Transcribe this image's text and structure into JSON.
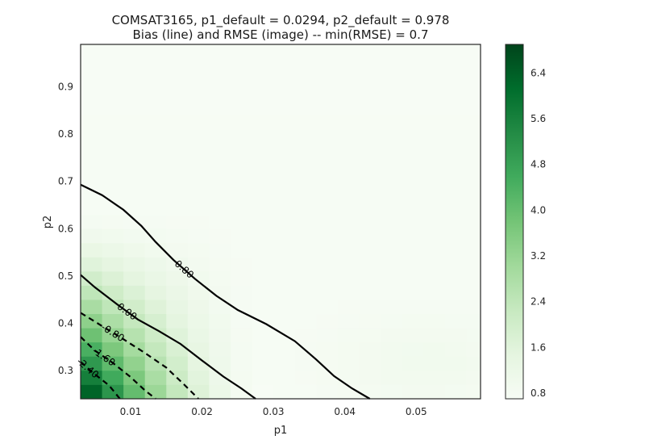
{
  "chart_data": {
    "type": "heatmap",
    "title": "COMSAT3165, p1_default = 0.0294, p2_default = 0.978",
    "subtitle": "Bias (line) and RMSE (image) -- min(RMSE) = 0.7",
    "xlabel": "p1",
    "ylabel": "p2",
    "xlim": [
      0.003,
      0.059
    ],
    "ylim": [
      0.24,
      0.99
    ],
    "x_ticks": [
      0.01,
      0.02,
      0.03,
      0.04,
      0.05
    ],
    "x_tick_labels": [
      "0.01",
      "0.02",
      "0.03",
      "0.04",
      "0.05"
    ],
    "y_ticks": [
      0.3,
      0.4,
      0.5,
      0.6,
      0.7,
      0.8,
      0.9
    ],
    "y_tick_labels": [
      "0.3",
      "0.4",
      "0.5",
      "0.6",
      "0.7",
      "0.8",
      "0.9"
    ],
    "grid": false,
    "colormap": "Greens",
    "colormap_stops": [
      "#f7fcf5",
      "#e5f5e0",
      "#c7e9c0",
      "#a1d99b",
      "#74c476",
      "#41ab5d",
      "#238b45",
      "#006d2c",
      "#00441b"
    ],
    "colorbar": {
      "range": [
        0.7,
        6.9
      ],
      "ticks": [
        0.8,
        1.6,
        2.4,
        3.2,
        4.0,
        4.8,
        5.6,
        6.4
      ],
      "tick_labels": [
        "0.8",
        "1.6",
        "2.4",
        "3.2",
        "4.0",
        "4.8",
        "5.6",
        "6.4"
      ]
    },
    "rmse_image": {
      "description": "RMSE grid over (p1, p2); high values in lower-left corner, decreasing toward upper-right",
      "p1_start": 0.003,
      "p1_step": 0.003,
      "p1_count": 19,
      "p2_start": 0.24,
      "p2_step": 0.03,
      "p2_count": 25,
      "min_rmse": 0.7
    },
    "bias_contours": [
      {
        "level": 0.8,
        "label": "0.80",
        "style": "solid",
        "points": [
          [
            0.003,
            0.693
          ],
          [
            0.006,
            0.671
          ],
          [
            0.009,
            0.64
          ],
          [
            0.0115,
            0.606
          ],
          [
            0.0135,
            0.572
          ],
          [
            0.016,
            0.534
          ],
          [
            0.019,
            0.494
          ],
          [
            0.022,
            0.458
          ],
          [
            0.025,
            0.428
          ],
          [
            0.029,
            0.398
          ],
          [
            0.033,
            0.362
          ],
          [
            0.036,
            0.323
          ],
          [
            0.0385,
            0.288
          ],
          [
            0.041,
            0.262
          ],
          [
            0.0435,
            0.24
          ]
        ]
      },
      {
        "level": 0.0,
        "label": "0.00",
        "style": "solid",
        "points": [
          [
            0.003,
            0.502
          ],
          [
            0.005,
            0.476
          ],
          [
            0.008,
            0.441
          ],
          [
            0.011,
            0.408
          ],
          [
            0.014,
            0.383
          ],
          [
            0.017,
            0.356
          ],
          [
            0.02,
            0.321
          ],
          [
            0.023,
            0.287
          ],
          [
            0.0255,
            0.262
          ],
          [
            0.0275,
            0.24
          ]
        ]
      },
      {
        "level": -0.8,
        "label": "-0.80",
        "style": "dashed",
        "points": [
          [
            0.003,
            0.422
          ],
          [
            0.006,
            0.394
          ],
          [
            0.009,
            0.366
          ],
          [
            0.012,
            0.337
          ],
          [
            0.015,
            0.306
          ],
          [
            0.0175,
            0.27
          ],
          [
            0.0195,
            0.24
          ]
        ]
      },
      {
        "level": -1.6,
        "label": "-1.60",
        "style": "dashed",
        "points": [
          [
            0.003,
            0.371
          ],
          [
            0.005,
            0.342
          ],
          [
            0.0075,
            0.316
          ],
          [
            0.01,
            0.286
          ],
          [
            0.012,
            0.258
          ],
          [
            0.0135,
            0.24
          ]
        ]
      },
      {
        "level": -2.4,
        "label": "-2.40",
        "style": "dashed",
        "points": [
          [
            0.003,
            0.318
          ],
          [
            0.005,
            0.292
          ],
          [
            0.007,
            0.268
          ],
          [
            0.0085,
            0.24
          ]
        ]
      }
    ]
  }
}
